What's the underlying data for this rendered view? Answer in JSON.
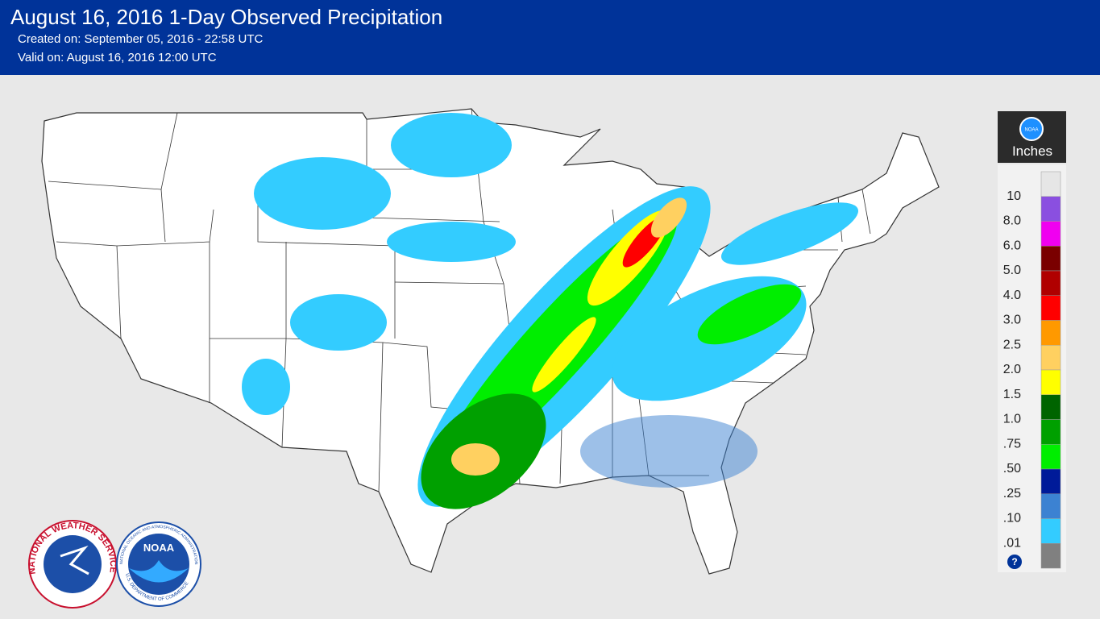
{
  "header": {
    "title": "August 16, 2016 1-Day Observed Precipitation",
    "created": "Created on: September 05, 2016 - 22:58 UTC",
    "valid": "Valid on: August 16, 2016 12:00 UTC"
  },
  "legend": {
    "logo": "NOAA",
    "unit": "Inches",
    "labels": [
      "10",
      "8.0",
      "6.0",
      "5.0",
      "4.0",
      "3.0",
      "2.5",
      "2.0",
      "1.5",
      "1.0",
      ".75",
      ".50",
      ".25",
      ".10",
      ".01"
    ],
    "colors": [
      "#e6e6e6",
      "#8a4fe0",
      "#f000f0",
      "#7a0000",
      "#b00000",
      "#ff0000",
      "#ff9900",
      "#ffd060",
      "#ffff00",
      "#006400",
      "#00a000",
      "#00ee00",
      "#001a99",
      "#3c82d2",
      "#33ccff",
      "#808080"
    ],
    "help": "?"
  },
  "logos": {
    "nws": "NATIONAL WEATHER SERVICE",
    "noaa": "NOAA",
    "noaa_ring_top": "NATIONAL OCEANIC AND ATMOSPHERIC ADMINISTRATION",
    "noaa_ring_bottom": "U.S. DEPARTMENT OF COMMERCE"
  }
}
